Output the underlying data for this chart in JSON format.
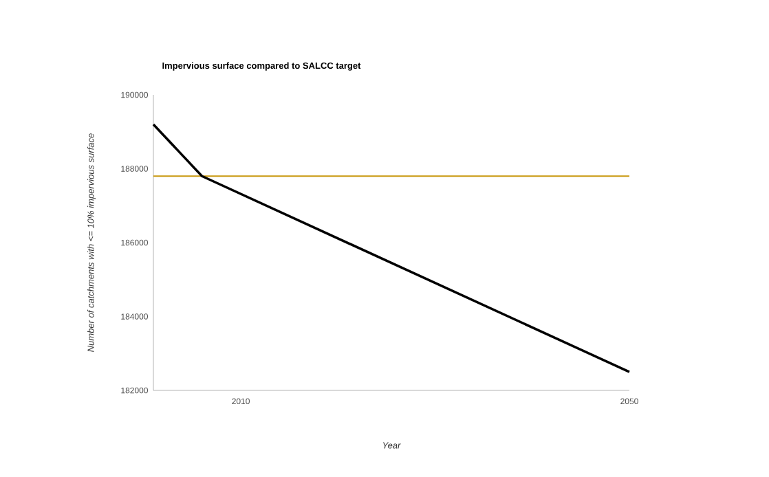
{
  "chart_data": {
    "type": "line",
    "title": "Impervious surface compared to SALCC target",
    "xlabel": "Year",
    "ylabel": "Number of catchments with <= 10% impervious surface",
    "x": [
      2001,
      2006,
      2050
    ],
    "series": [
      {
        "color": "#000000",
        "values": [
          189200,
          187800,
          182500
        ]
      }
    ],
    "xlim": [
      2001,
      2050
    ],
    "xticks": [
      2010,
      2050
    ],
    "ylim": [
      182000,
      190000
    ],
    "yticks": [
      182000,
      184000,
      186000,
      188000,
      190000
    ],
    "ref_lines": [
      {
        "axis": "y",
        "value": 187800,
        "color": "#c9980f"
      }
    ],
    "marker": "none",
    "line_style": "solid"
  }
}
